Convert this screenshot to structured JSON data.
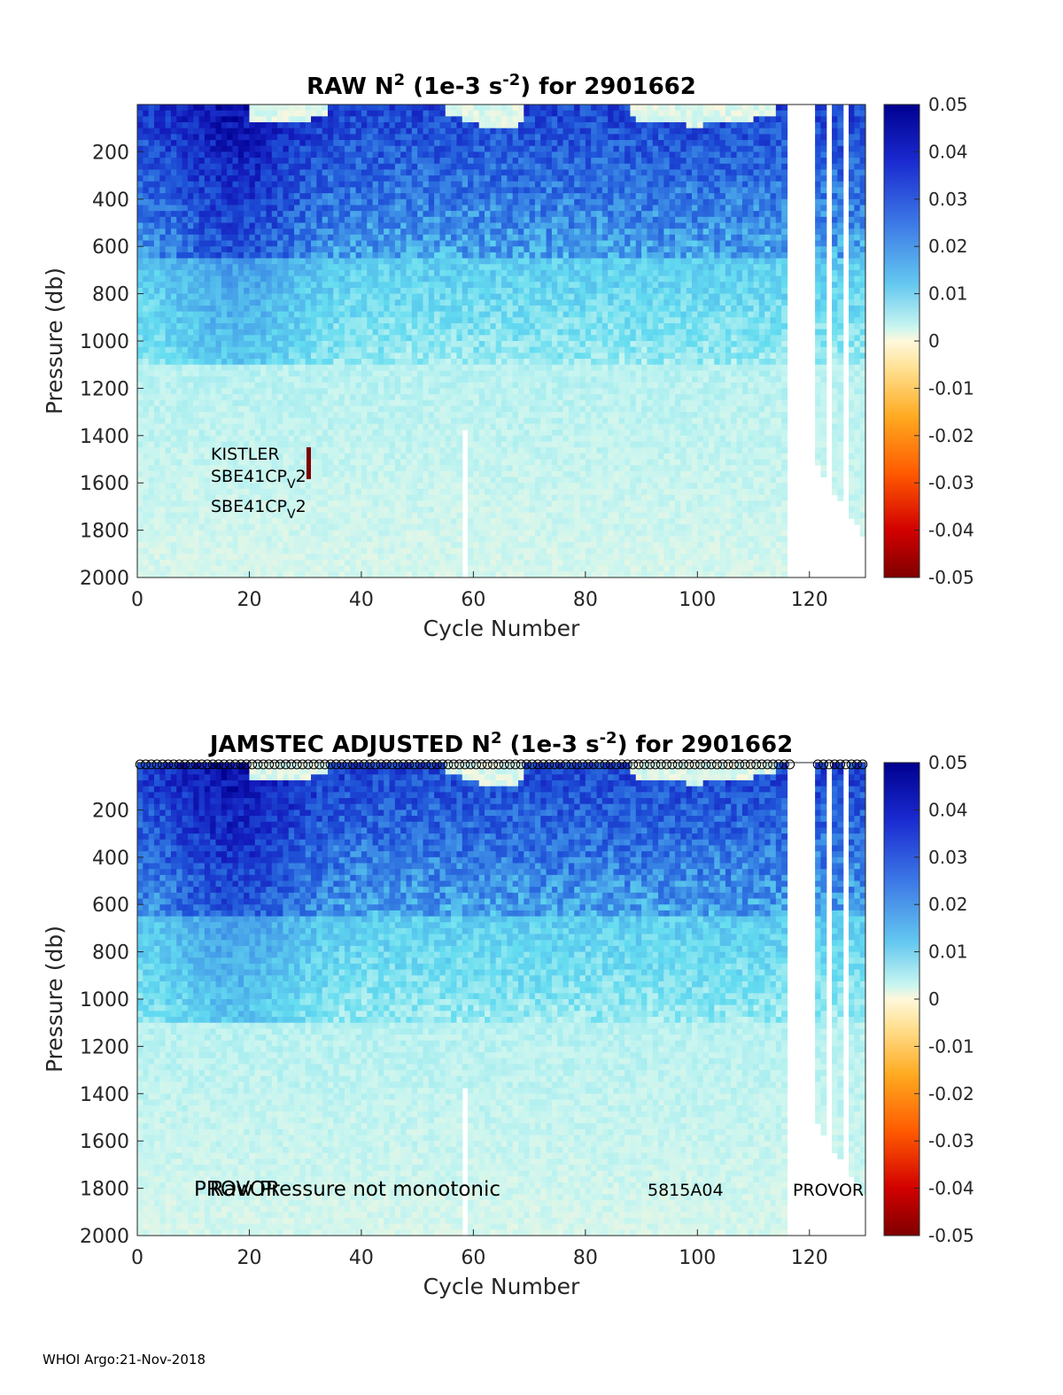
{
  "chart_data": [
    {
      "type": "heatmap",
      "title_prefix": "RAW N",
      "title_sup": "2",
      "title_mid": " (1e-3 s",
      "title_sup2": "-2",
      "title_suffix": ") for 2901662",
      "xlabel": "Cycle Number",
      "ylabel": "Pressure (db)",
      "xlim": [
        0,
        130
      ],
      "ylim": [
        0,
        2000
      ],
      "x_ticks": [
        "0",
        "20",
        "40",
        "60",
        "80",
        "100",
        "120"
      ],
      "y_ticks": [
        "200",
        "400",
        "600",
        "800",
        "1000",
        "1200",
        "1400",
        "1600",
        "1800",
        "2000"
      ],
      "colorbar_ticks": [
        "0.05",
        "0.04",
        "0.03",
        "0.02",
        "0.01",
        "0",
        "-0.01",
        "-0.02",
        "-0.03",
        "-0.04",
        "-0.05"
      ],
      "clim": [
        -0.05,
        0.05
      ],
      "annotations": {
        "sensor_1": "KISTLER",
        "sensor_2_base": "SBE41CP",
        "sensor_2_sub": "V",
        "sensor_2_end": "2",
        "sensor_3_base": "SBE41CP",
        "sensor_3_sub": "V",
        "sensor_3_end": "2"
      }
    },
    {
      "type": "heatmap",
      "title_prefix": "JAMSTEC  ADJUSTED N",
      "title_sup": "2",
      "title_mid": " (1e-3 s",
      "title_sup2": "-2",
      "title_suffix": ") for 2901662",
      "xlabel": "Cycle Number",
      "ylabel": "Pressure (db)",
      "xlim": [
        0,
        130
      ],
      "ylim": [
        0,
        2000
      ],
      "x_ticks": [
        "0",
        "20",
        "40",
        "60",
        "80",
        "100",
        "120"
      ],
      "y_ticks": [
        "200",
        "400",
        "600",
        "800",
        "1000",
        "1200",
        "1400",
        "1600",
        "1800",
        "2000"
      ],
      "colorbar_ticks": [
        "0.05",
        "0.04",
        "0.03",
        "0.02",
        "0.01",
        "0",
        "-0.01",
        "-0.02",
        "-0.03",
        "-0.04",
        "-0.05"
      ],
      "clim": [
        -0.05,
        0.05
      ],
      "annotations": {
        "platform_1": "PROVOR",
        "warning": "Raw Pressure not monotonic",
        "firmware": "5815A04",
        "platform_2": "PROVOR"
      }
    }
  ],
  "footer": "WHOI Argo:21-Nov-2018",
  "colors": {
    "deep_blue": "#00008f",
    "light_cyan": "#bff5f5",
    "neutral": "#fff8dc",
    "dark_red": "#800000"
  }
}
